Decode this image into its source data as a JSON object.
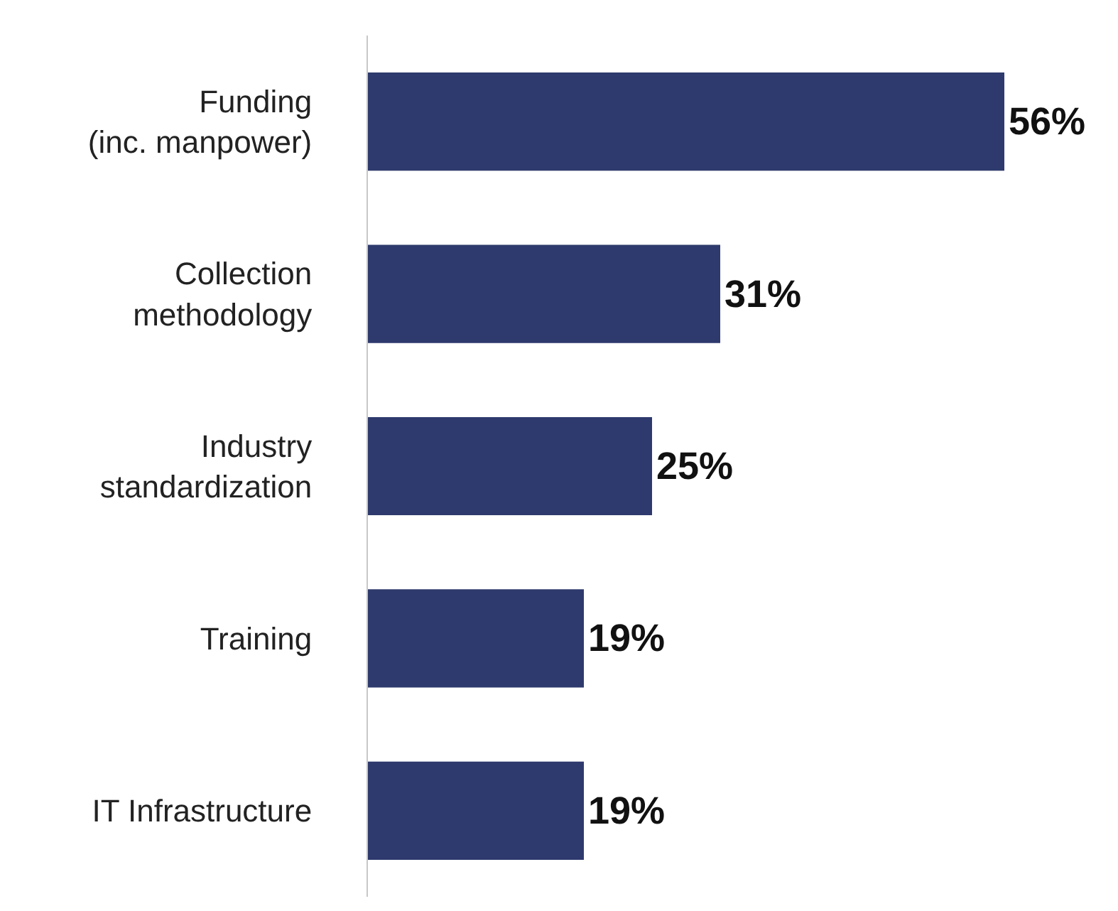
{
  "chart_data": {
    "type": "bar",
    "orientation": "horizontal",
    "categories": [
      "Funding\n(inc. manpower)",
      "Collection\nmethodology",
      "Industry\nstandardization",
      "Training",
      "IT Infrastructure"
    ],
    "values": [
      56,
      31,
      25,
      19,
      19
    ],
    "value_labels": [
      "56%",
      "31%",
      "25%",
      "19%",
      "19%"
    ],
    "color": "#2e3a6d",
    "xlim": [
      0,
      66
    ],
    "tick_labels": "y",
    "legend": false
  }
}
